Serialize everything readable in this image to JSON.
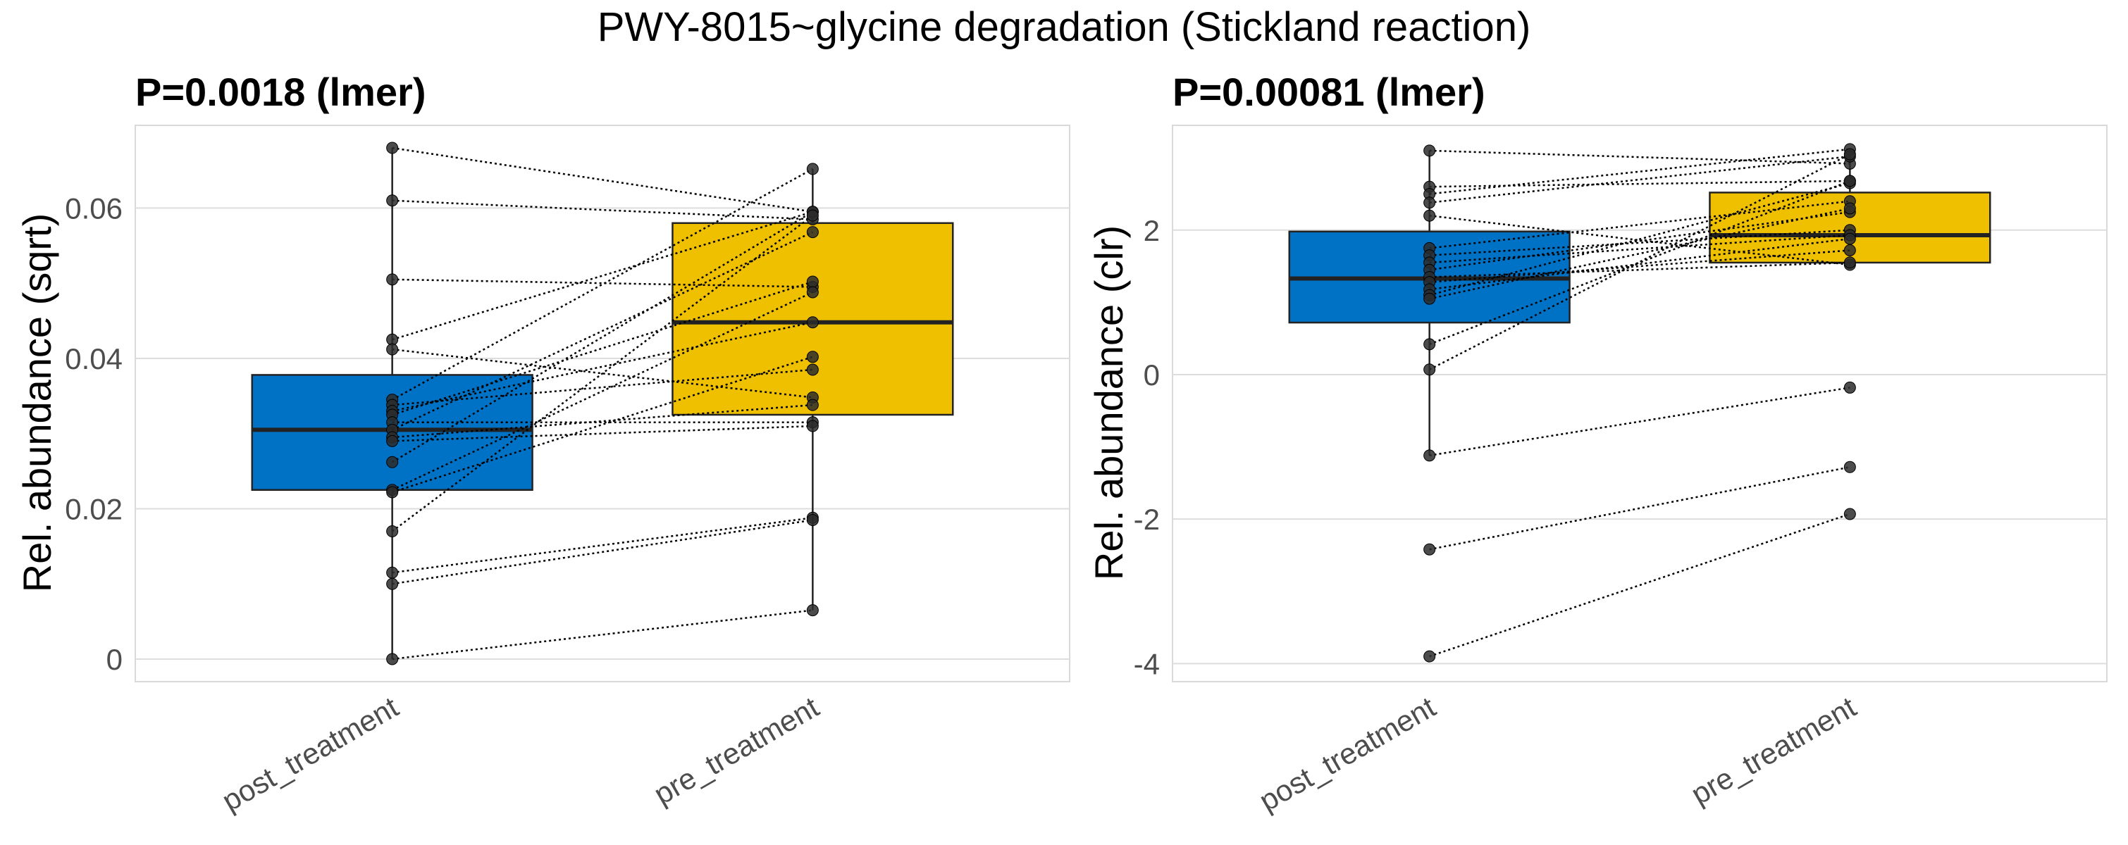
{
  "title": "PWY-8015~glycine degradation (Stickland reaction)",
  "colors": {
    "post_treatment": "#0072C6",
    "pre_treatment": "#EFC000",
    "grid": "#dddddd",
    "panel_border": "#d9d9d9",
    "point": "#2b2b2b"
  },
  "chart_data": [
    {
      "type": "box",
      "title": "P=0.0018 (lmer)",
      "ylabel": "Rel. abundance (sqrt)",
      "xlabel": "",
      "categories": [
        "post_treatment",
        "pre_treatment"
      ],
      "ylim": [
        -0.003,
        0.071
      ],
      "yticks": [
        0,
        0.02,
        0.04,
        0.06
      ],
      "ytick_labels": [
        "0",
        "0.02",
        "0.04",
        "0.06"
      ],
      "boxes": [
        {
          "category": "post_treatment",
          "q1": 0.0225,
          "median": 0.0305,
          "q3": 0.0378,
          "whisker_low": 0.0,
          "whisker_high": 0.068
        },
        {
          "category": "pre_treatment",
          "q1": 0.0325,
          "median": 0.0448,
          "q3": 0.058,
          "whisker_low": 0.0065,
          "whisker_high": 0.0652
        }
      ],
      "pairs": [
        [
          0.068,
          0.0595
        ],
        [
          0.061,
          0.0585
        ],
        [
          0.0505,
          0.0495
        ],
        [
          0.0425,
          0.0595
        ],
        [
          0.0412,
          0.0348
        ],
        [
          0.0345,
          0.0652
        ],
        [
          0.0338,
          0.0385
        ],
        [
          0.033,
          0.0448
        ],
        [
          0.0325,
          0.0502
        ],
        [
          0.0315,
          0.0315
        ],
        [
          0.0305,
          0.0568
        ],
        [
          0.0295,
          0.0338
        ],
        [
          0.029,
          0.031
        ],
        [
          0.0262,
          0.0595
        ],
        [
          0.0225,
          0.0488
        ],
        [
          0.0222,
          0.0402
        ],
        [
          0.017,
          0.059
        ],
        [
          0.0115,
          0.0188
        ],
        [
          0.01,
          0.0185
        ],
        [
          0.0,
          0.0065
        ]
      ]
    },
    {
      "type": "box",
      "title": "P=0.00081 (lmer)",
      "ylabel": "Rel. abundance (clr)",
      "xlabel": "",
      "categories": [
        "post_treatment",
        "pre_treatment"
      ],
      "ylim": [
        -4.25,
        3.45
      ],
      "yticks": [
        -4,
        -2,
        0,
        2
      ],
      "ytick_labels": [
        "-4",
        "-2",
        "0",
        "2"
      ],
      "boxes": [
        {
          "category": "post_treatment",
          "q1": 0.72,
          "median": 1.33,
          "q3": 1.98,
          "whisker_low": -1.12,
          "whisker_high": 3.1
        },
        {
          "category": "pre_treatment",
          "q1": 1.55,
          "median": 1.93,
          "q3": 2.52,
          "whisker_low": 1.48,
          "whisker_high": 3.12
        }
      ],
      "pairs": [
        [
          3.1,
          2.92
        ],
        [
          2.6,
          2.68
        ],
        [
          2.5,
          3.12
        ],
        [
          2.38,
          3.02
        ],
        [
          2.2,
          1.52
        ],
        [
          1.75,
          2.4
        ],
        [
          1.65,
          2.0
        ],
        [
          1.55,
          1.93
        ],
        [
          1.45,
          2.25
        ],
        [
          1.35,
          1.55
        ],
        [
          1.28,
          1.72
        ],
        [
          1.18,
          1.88
        ],
        [
          1.1,
          2.65
        ],
        [
          1.05,
          2.3
        ],
        [
          0.42,
          2.68
        ],
        [
          0.07,
          3.05
        ],
        [
          -1.12,
          -0.18
        ],
        [
          -2.42,
          -1.28
        ],
        [
          -3.9,
          -1.93
        ]
      ]
    }
  ]
}
